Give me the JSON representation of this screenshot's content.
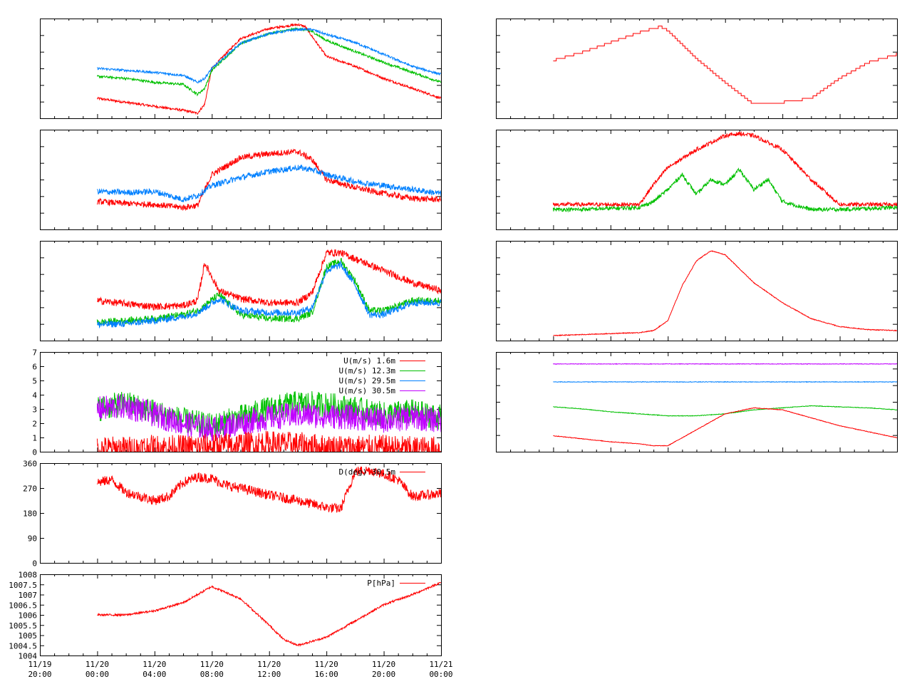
{
  "colors": {
    "red": "#ff0000",
    "green": "#00c000",
    "blue": "#0080ff",
    "purple": "#c000ff"
  },
  "chart_data": [
    {
      "id": "left-1",
      "type": "line",
      "grid": false,
      "x_range": [
        "11/19 20:00",
        "11/21 00:00"
      ],
      "series": [
        {
          "color": "red",
          "x": [
            "11/20 00:00",
            "11/20 02:00",
            "11/20 04:00",
            "11/20 06:00",
            "11/20 07:00",
            "11/20 07:30",
            "11/20 08:00",
            "11/20 10:00",
            "11/20 12:00",
            "11/20 14:00",
            "11/20 14:30",
            "11/20 16:00",
            "11/20 18:00",
            "11/20 20:00",
            "11/20 22:00",
            "11/21 00:00"
          ],
          "y": [
            0.2,
            0.16,
            0.12,
            0.08,
            0.05,
            0.14,
            0.5,
            0.8,
            0.9,
            0.94,
            0.92,
            0.62,
            0.52,
            0.4,
            0.3,
            0.2
          ]
        },
        {
          "color": "green",
          "x": [
            "11/20 00:00",
            "11/20 02:00",
            "11/20 04:00",
            "11/20 06:00",
            "11/20 07:00",
            "11/20 07:30",
            "11/20 08:00",
            "11/20 10:00",
            "11/20 12:00",
            "11/20 14:00",
            "11/20 15:00",
            "11/20 16:00",
            "11/20 18:00",
            "11/20 20:00",
            "11/20 22:00",
            "11/21 00:00"
          ],
          "y": [
            0.42,
            0.4,
            0.36,
            0.34,
            0.24,
            0.3,
            0.48,
            0.75,
            0.85,
            0.9,
            0.87,
            0.78,
            0.67,
            0.56,
            0.46,
            0.36
          ]
        },
        {
          "color": "blue",
          "x": [
            "11/20 00:00",
            "11/20 02:00",
            "11/20 04:00",
            "11/20 06:00",
            "11/20 07:00",
            "11/20 07:30",
            "11/20 08:00",
            "11/20 10:00",
            "11/20 12:00",
            "11/20 14:00",
            "11/20 15:00",
            "11/20 16:00",
            "11/20 18:00",
            "11/20 20:00",
            "11/20 22:00",
            "11/21 00:00"
          ],
          "y": [
            0.5,
            0.48,
            0.46,
            0.43,
            0.36,
            0.4,
            0.5,
            0.75,
            0.85,
            0.89,
            0.89,
            0.84,
            0.76,
            0.64,
            0.52,
            0.44
          ]
        }
      ]
    },
    {
      "id": "left-2",
      "type": "line",
      "grid": false,
      "x_range": [
        "11/19 20:00",
        "11/21 00:00"
      ],
      "series": [
        {
          "color": "red",
          "x": [
            "11/20 00:00",
            "11/20 02:00",
            "11/20 04:00",
            "11/20 06:00",
            "11/20 07:00",
            "11/20 08:00",
            "11/20 10:00",
            "11/20 12:00",
            "11/20 14:00",
            "11/20 15:00",
            "11/20 16:00",
            "11/20 18:00",
            "11/20 20:00",
            "11/20 22:00",
            "11/21 00:00"
          ],
          "y": [
            0.28,
            0.26,
            0.25,
            0.22,
            0.24,
            0.55,
            0.72,
            0.76,
            0.78,
            0.7,
            0.5,
            0.42,
            0.36,
            0.31,
            0.3
          ]
        },
        {
          "color": "blue",
          "x": [
            "11/20 00:00",
            "11/20 02:00",
            "11/20 04:00",
            "11/20 06:00",
            "11/20 07:00",
            "11/20 08:00",
            "11/20 10:00",
            "11/20 12:00",
            "11/20 14:00",
            "11/20 15:00",
            "11/20 16:00",
            "11/20 18:00",
            "11/20 20:00",
            "11/20 22:00",
            "11/21 00:00"
          ],
          "y": [
            0.38,
            0.37,
            0.38,
            0.3,
            0.34,
            0.44,
            0.52,
            0.58,
            0.62,
            0.6,
            0.55,
            0.48,
            0.44,
            0.4,
            0.36
          ]
        }
      ]
    },
    {
      "id": "left-3",
      "type": "line",
      "grid": false,
      "x_range": [
        "11/19 20:00",
        "11/21 00:00"
      ],
      "series": [
        {
          "color": "red",
          "x": [
            "11/20 00:00",
            "11/20 02:00",
            "11/20 04:00",
            "11/20 06:00",
            "11/20 07:00",
            "11/20 07:30",
            "11/20 08:30",
            "11/20 10:00",
            "11/20 12:00",
            "11/20 14:00",
            "11/20 15:00",
            "11/20 16:00",
            "11/20 17:00",
            "11/20 18:00",
            "11/20 20:00",
            "11/20 22:00",
            "11/21 00:00"
          ],
          "y": [
            0.4,
            0.37,
            0.34,
            0.35,
            0.4,
            0.78,
            0.5,
            0.42,
            0.38,
            0.38,
            0.48,
            0.88,
            0.88,
            0.82,
            0.7,
            0.58,
            0.5
          ]
        },
        {
          "color": "green",
          "x": [
            "11/20 00:00",
            "11/20 02:00",
            "11/20 04:00",
            "11/20 06:00",
            "11/20 07:00",
            "11/20 08:30",
            "11/20 10:00",
            "11/20 12:00",
            "11/20 14:00",
            "11/20 15:00",
            "11/20 16:00",
            "11/20 17:00",
            "11/20 18:00",
            "11/20 19:00",
            "11/20 20:00",
            "11/20 22:00",
            "11/21 00:00"
          ],
          "y": [
            0.18,
            0.2,
            0.22,
            0.26,
            0.3,
            0.46,
            0.26,
            0.22,
            0.22,
            0.28,
            0.74,
            0.8,
            0.6,
            0.3,
            0.3,
            0.4,
            0.4
          ]
        },
        {
          "color": "blue",
          "x": [
            "11/20 00:00",
            "11/20 02:00",
            "11/20 04:00",
            "11/20 06:00",
            "11/20 07:00",
            "11/20 08:30",
            "11/20 10:00",
            "11/20 12:00",
            "11/20 14:00",
            "11/20 15:00",
            "11/20 16:00",
            "11/20 17:00",
            "11/20 18:00",
            "11/20 19:00",
            "11/20 20:00",
            "11/20 22:00",
            "11/21 00:00"
          ],
          "y": [
            0.16,
            0.17,
            0.2,
            0.24,
            0.28,
            0.42,
            0.3,
            0.28,
            0.28,
            0.33,
            0.7,
            0.76,
            0.56,
            0.26,
            0.26,
            0.38,
            0.38
          ]
        }
      ]
    },
    {
      "id": "left-4",
      "type": "line",
      "grid": false,
      "x_range": [
        "11/19 20:00",
        "11/21 00:00"
      ],
      "ylim": [
        0,
        7
      ],
      "yticks": [
        "0",
        "1",
        "2",
        "3",
        "4",
        "5",
        "6",
        "7"
      ],
      "legend": {
        "position": "top-right",
        "entries": [
          {
            "label": "U(m/s)  1.6m",
            "color": "red"
          },
          {
            "label": "U(m/s) 12.3m",
            "color": "green"
          },
          {
            "label": "U(m/s) 29.5m",
            "color": "blue"
          },
          {
            "label": "U(m/s) 30.5m",
            "color": "purple"
          }
        ]
      },
      "series": [
        {
          "color": "green",
          "x": [
            "11/20 00:00",
            "11/20 02:00",
            "11/20 04:00",
            "11/20 06:00",
            "11/20 08:00",
            "11/20 10:00",
            "11/20 12:00",
            "11/20 14:00",
            "11/20 16:00",
            "11/20 18:00",
            "11/20 20:00",
            "11/20 22:00",
            "11/21 00:00"
          ],
          "y": [
            3.0,
            3.4,
            2.8,
            2.2,
            1.8,
            2.4,
            3.0,
            3.4,
            3.3,
            3.0,
            2.6,
            2.8,
            2.4
          ]
        },
        {
          "color": "purple",
          "x": [
            "11/20 00:00",
            "11/20 02:00",
            "11/20 04:00",
            "11/20 06:00",
            "11/20 08:00",
            "11/20 10:00",
            "11/20 12:00",
            "11/20 14:00",
            "11/20 16:00",
            "11/20 18:00",
            "11/20 20:00",
            "11/20 22:00",
            "11/21 00:00"
          ],
          "y": [
            3.0,
            3.2,
            2.6,
            2.0,
            1.6,
            2.0,
            2.4,
            2.6,
            2.5,
            2.4,
            2.2,
            2.4,
            2.2
          ]
        },
        {
          "color": "red",
          "x": [
            "11/20 00:00",
            "11/20 02:00",
            "11/20 04:00",
            "11/20 06:00",
            "11/20 08:00",
            "11/20 10:00",
            "11/20 12:00",
            "11/20 14:00",
            "11/20 16:00",
            "11/20 18:00",
            "11/20 20:00",
            "11/20 22:00",
            "11/21 00:00"
          ],
          "y": [
            0.2,
            0.2,
            0.3,
            0.3,
            0.4,
            0.5,
            0.6,
            0.5,
            0.3,
            0.3,
            0.3,
            0.2,
            0.2
          ]
        }
      ]
    },
    {
      "id": "left-5",
      "type": "line",
      "grid": false,
      "x_range": [
        "11/19 20:00",
        "11/21 00:00"
      ],
      "ylim": [
        0,
        360
      ],
      "yticks": [
        "0",
        "90",
        "180",
        "270",
        "360"
      ],
      "legend": {
        "position": "top-right",
        "entries": [
          {
            "label": "D(deg) 30.5m",
            "color": "red"
          }
        ]
      },
      "series": [
        {
          "color": "red",
          "x": [
            "11/20 00:00",
            "11/20 01:00",
            "11/20 02:00",
            "11/20 04:00",
            "11/20 05:00",
            "11/20 06:00",
            "11/20 07:00",
            "11/20 08:00",
            "11/20 09:00",
            "11/20 10:00",
            "11/20 12:00",
            "11/20 14:00",
            "11/20 16:00",
            "11/20 17:00",
            "11/20 18:00",
            "11/20 19:00",
            "11/20 20:00",
            "11/20 21:00",
            "11/20 22:00",
            "11/21 00:00"
          ],
          "y": [
            290,
            300,
            255,
            225,
            240,
            290,
            310,
            305,
            280,
            270,
            245,
            225,
            200,
            195,
            330,
            335,
            320,
            300,
            240,
            250
          ]
        }
      ]
    },
    {
      "id": "left-6",
      "type": "line",
      "grid": false,
      "x_range": [
        "11/19 20:00",
        "11/21 00:00"
      ],
      "ylim": [
        1004,
        1008
      ],
      "yticks": [
        "1004",
        "1004.5",
        "1005",
        "1005.5",
        "1006",
        "1006.5",
        "1007",
        "1007.5",
        "1008"
      ],
      "xticks": [
        {
          "date": "11/19",
          "time": "20:00"
        },
        {
          "date": "11/20",
          "time": "00:00"
        },
        {
          "date": "11/20",
          "time": "04:00"
        },
        {
          "date": "11/20",
          "time": "08:00"
        },
        {
          "date": "11/20",
          "time": "12:00"
        },
        {
          "date": "11/20",
          "time": "16:00"
        },
        {
          "date": "11/20",
          "time": "20:00"
        },
        {
          "date": "11/21",
          "time": "00:00"
        }
      ],
      "legend": {
        "position": "top-right",
        "entries": [
          {
            "label": "P[hPa]",
            "color": "red"
          }
        ]
      },
      "series": [
        {
          "color": "red",
          "x": [
            "11/20 00:00",
            "11/20 02:00",
            "11/20 04:00",
            "11/20 06:00",
            "11/20 08:00",
            "11/20 10:00",
            "11/20 12:00",
            "11/20 13:00",
            "11/20 14:00",
            "11/20 16:00",
            "11/20 18:00",
            "11/20 20:00",
            "11/20 22:00",
            "11/21 00:00"
          ],
          "y": [
            1006.0,
            1006.0,
            1006.2,
            1006.6,
            1007.4,
            1006.8,
            1005.5,
            1004.8,
            1004.5,
            1004.9,
            1005.7,
            1006.5,
            1007.0,
            1007.6
          ]
        }
      ]
    },
    {
      "id": "right-1",
      "type": "line",
      "grid": false,
      "step": true,
      "x_range": [
        "11/19 20:00",
        "11/21 00:00"
      ],
      "series": [
        {
          "color": "red",
          "x": [
            "11/20 00:00",
            "11/20 02:00",
            "11/20 04:00",
            "11/20 06:00",
            "11/20 07:30",
            "11/20 08:00",
            "11/20 10:00",
            "11/20 12:00",
            "11/20 14:00",
            "11/20 16:00",
            "11/20 18:00",
            "11/20 20:00",
            "11/20 22:00",
            "11/21 00:00"
          ],
          "y": [
            0.58,
            0.66,
            0.76,
            0.86,
            0.92,
            0.88,
            0.6,
            0.36,
            0.14,
            0.16,
            0.2,
            0.4,
            0.56,
            0.64
          ]
        }
      ]
    },
    {
      "id": "right-2",
      "type": "line",
      "grid": false,
      "x_range": [
        "11/19 20:00",
        "11/21 00:00"
      ],
      "series": [
        {
          "color": "red",
          "x": [
            "11/20 00:00",
            "11/20 02:00",
            "11/20 04:00",
            "11/20 06:00",
            "11/20 07:00",
            "11/20 08:00",
            "11/20 10:00",
            "11/20 12:00",
            "11/20 13:00",
            "11/20 14:00",
            "11/20 16:00",
            "11/20 18:00",
            "11/20 20:00",
            "11/20 22:00",
            "11/21 00:00"
          ],
          "y": [
            0.25,
            0.25,
            0.25,
            0.25,
            0.45,
            0.62,
            0.8,
            0.94,
            0.96,
            0.94,
            0.8,
            0.5,
            0.25,
            0.25,
            0.25
          ]
        },
        {
          "color": "green",
          "x": [
            "11/20 00:00",
            "11/20 02:00",
            "11/20 04:00",
            "11/20 06:00",
            "11/20 07:00",
            "11/20 08:00",
            "11/20 09:00",
            "11/20 10:00",
            "11/20 11:00",
            "11/20 12:00",
            "11/20 13:00",
            "11/20 14:00",
            "11/20 15:00",
            "11/20 16:00",
            "11/20 18:00",
            "11/20 20:00",
            "11/20 22:00",
            "11/21 00:00"
          ],
          "y": [
            0.2,
            0.2,
            0.21,
            0.22,
            0.28,
            0.4,
            0.55,
            0.35,
            0.5,
            0.45,
            0.6,
            0.4,
            0.5,
            0.28,
            0.2,
            0.2,
            0.21,
            0.22
          ]
        }
      ]
    },
    {
      "id": "right-3",
      "type": "line",
      "grid": false,
      "x_range": [
        "11/19 20:00",
        "11/21 00:00"
      ],
      "series": [
        {
          "color": "red",
          "x": [
            "11/20 00:00",
            "11/20 02:00",
            "11/20 04:00",
            "11/20 06:00",
            "11/20 07:00",
            "11/20 08:00",
            "11/20 09:00",
            "11/20 10:00",
            "11/20 11:00",
            "11/20 12:00",
            "11/20 13:00",
            "11/20 14:00",
            "11/20 15:00",
            "11/20 16:00",
            "11/20 18:00",
            "11/20 20:00",
            "11/20 22:00",
            "11/21 00:00"
          ],
          "y": [
            0.05,
            0.06,
            0.07,
            0.08,
            0.1,
            0.2,
            0.55,
            0.8,
            0.9,
            0.86,
            0.72,
            0.58,
            0.48,
            0.38,
            0.22,
            0.14,
            0.11,
            0.1
          ]
        }
      ]
    },
    {
      "id": "right-4",
      "type": "line",
      "grid": false,
      "x_range": [
        "11/19 20:00",
        "11/21 00:00"
      ],
      "series": [
        {
          "color": "purple",
          "x": [
            "11/20 00:00",
            "11/21 00:00"
          ],
          "y": [
            0.88,
            0.88
          ]
        },
        {
          "color": "blue",
          "x": [
            "11/20 00:00",
            "11/21 00:00"
          ],
          "y": [
            0.7,
            0.7
          ]
        },
        {
          "color": "green",
          "x": [
            "11/20 00:00",
            "11/20 02:00",
            "11/20 04:00",
            "11/20 06:00",
            "11/20 08:00",
            "11/20 10:00",
            "11/20 12:00",
            "11/20 14:00",
            "11/20 16:00",
            "11/20 18:00",
            "11/20 20:00",
            "11/20 22:00",
            "11/21 00:00"
          ],
          "y": [
            0.45,
            0.43,
            0.4,
            0.38,
            0.36,
            0.36,
            0.38,
            0.42,
            0.44,
            0.46,
            0.45,
            0.44,
            0.42
          ]
        },
        {
          "color": "red",
          "x": [
            "11/20 00:00",
            "11/20 02:00",
            "11/20 04:00",
            "11/20 06:00",
            "11/20 07:00",
            "11/20 08:00",
            "11/20 10:00",
            "11/20 12:00",
            "11/20 14:00",
            "11/20 16:00",
            "11/20 18:00",
            "11/20 20:00",
            "11/20 22:00",
            "11/21 00:00"
          ],
          "y": [
            0.16,
            0.13,
            0.1,
            0.08,
            0.06,
            0.06,
            0.22,
            0.38,
            0.44,
            0.42,
            0.34,
            0.26,
            0.2,
            0.14
          ]
        }
      ]
    }
  ]
}
